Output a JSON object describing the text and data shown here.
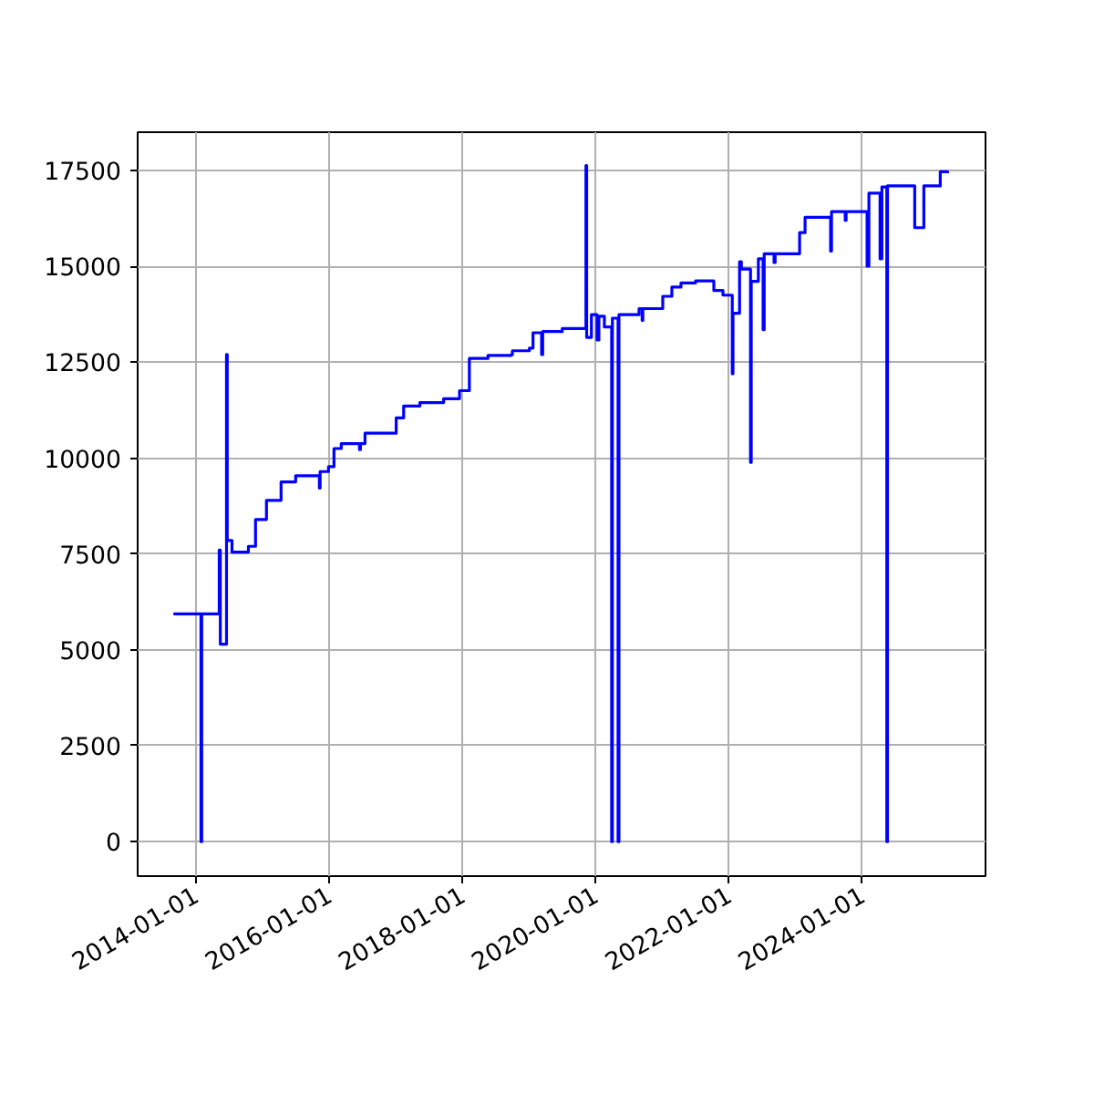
{
  "chart_data": {
    "type": "step",
    "grid": true,
    "line_style": "solid",
    "x": [
      "2013-08-30",
      "2014-01-28",
      "2014-02-01",
      "2014-05-08",
      "2014-05-14",
      "2014-06-17",
      "2014-06-21",
      "2014-07-17",
      "2014-10-15",
      "2014-11-23",
      "2015-01-22",
      "2015-04-12",
      "2015-07-01",
      "2015-11-08",
      "2015-11-12",
      "2015-12-28",
      "2016-01-27",
      "2016-03-07",
      "2016-06-15",
      "2016-06-20",
      "2016-07-15",
      "2017-01-02",
      "2017-02-12",
      "2017-05-12",
      "2017-09-19",
      "2017-12-15",
      "2018-02-07",
      "2018-05-20",
      "2018-09-25",
      "2018-10-01",
      "2019-01-02",
      "2019-01-22",
      "2019-03-10",
      "2019-03-16",
      "2019-07-01",
      "2019-11-08",
      "2019-11-12",
      "2019-12-08",
      "2020-01-08",
      "2020-01-18",
      "2020-02-17",
      "2020-03-28",
      "2020-04-01",
      "2020-05-02",
      "2020-05-07",
      "2020-08-25",
      "2020-09-11",
      "2020-09-15",
      "2021-01-02",
      "2021-02-21",
      "2021-04-12",
      "2021-07-01",
      "2021-10-09",
      "2021-11-28",
      "2022-01-18",
      "2022-01-22",
      "2022-02-27",
      "2022-03-09",
      "2022-04-28",
      "2022-05-02",
      "2022-06-10",
      "2022-07-06",
      "2022-07-12",
      "2022-09-04",
      "2022-09-10",
      "2023-01-22",
      "2023-02-21",
      "2023-07-11",
      "2023-07-16",
      "2023-09-29",
      "2023-10-04",
      "2024-01-27",
      "2024-02-06",
      "2024-04-07",
      "2024-04-17",
      "2024-05-14",
      "2024-05-18",
      "2024-10-14",
      "2024-12-03",
      "2025-03-03",
      "2025-04-12"
    ],
    "series": [
      {
        "color": "#0000ff",
        "values": [
          5940,
          0,
          5940,
          7600,
          5150,
          12700,
          7850,
          7550,
          7700,
          8400,
          8900,
          9380,
          9540,
          9220,
          9650,
          9780,
          10250,
          10380,
          10220,
          10380,
          10650,
          11050,
          11360,
          11450,
          11550,
          11760,
          12600,
          12680,
          12700,
          12800,
          12870,
          13270,
          12700,
          13300,
          13380,
          17630,
          13150,
          13740,
          13080,
          13700,
          13420,
          0,
          13650,
          0,
          13740,
          13900,
          13590,
          13900,
          14220,
          14460,
          14570,
          14620,
          14370,
          14250,
          12200,
          13780,
          15120,
          14930,
          9890,
          14610,
          15200,
          13350,
          15330,
          15100,
          15330,
          15880,
          16280,
          15400,
          16430,
          16200,
          16430,
          15010,
          16910,
          15200,
          17070,
          0,
          17100,
          16010,
          17100,
          17470,
          17430
        ]
      }
    ],
    "xlim": [
      "2013-02-15",
      "2025-11-06"
    ],
    "xticks": [
      "2014-01-01",
      "2016-01-01",
      "2018-01-01",
      "2020-01-01",
      "2022-01-01",
      "2024-01-01"
    ],
    "ylim": [
      -900,
      18500
    ],
    "yticks": [
      0,
      2500,
      5000,
      7500,
      10000,
      12500,
      15000,
      17500
    ]
  }
}
